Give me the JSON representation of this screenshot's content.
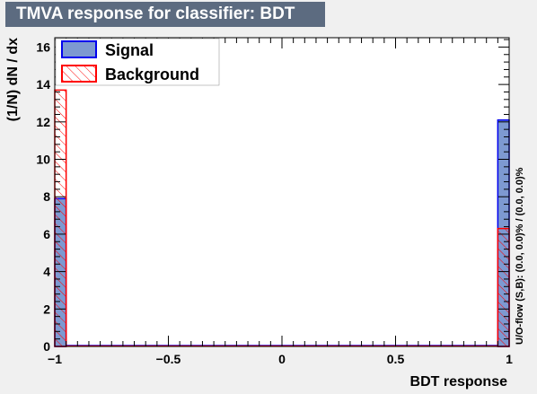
{
  "title": "TMVA response for classifier: BDT",
  "colors": {
    "signal_fill": "#7d99d1",
    "signal_line": "#0000ee",
    "background_line": "#ff0000",
    "title_bg": "#5c6b80"
  },
  "chart_data": {
    "type": "bar",
    "title": "TMVA response for classifier: BDT",
    "xlabel": "BDT response",
    "ylabel": "(1/N) dN / dx",
    "xlim": [
      -1,
      1
    ],
    "ylim": [
      0,
      16.5
    ],
    "x_ticks": [
      -1,
      -0.5,
      0,
      0.5,
      1
    ],
    "x_tick_labels": [
      "−1",
      "−0.5",
      "0",
      "0.5",
      "1"
    ],
    "y_ticks": [
      0,
      2,
      4,
      6,
      8,
      10,
      12,
      14,
      16
    ],
    "y_tick_labels": [
      "0",
      "2",
      "4",
      "6",
      "8",
      "10",
      "12",
      "14",
      "16"
    ],
    "grid": false,
    "legend_position": "top-left",
    "side_annotation": "U/O-flow (S,B): (0.0, 0.0)% / (0.0, 0.0)%",
    "series": [
      {
        "name": "Signal",
        "style": "filled",
        "bins": [
          {
            "x0": -1.0,
            "x1": -0.95,
            "value": 7.9
          },
          {
            "x0": 0.95,
            "x1": 1.0,
            "value": 12.1
          }
        ]
      },
      {
        "name": "Background",
        "style": "hatched",
        "bins": [
          {
            "x0": -1.0,
            "x1": -0.95,
            "value": 13.7
          },
          {
            "x0": 0.95,
            "x1": 1.0,
            "value": 6.3
          }
        ]
      }
    ]
  }
}
